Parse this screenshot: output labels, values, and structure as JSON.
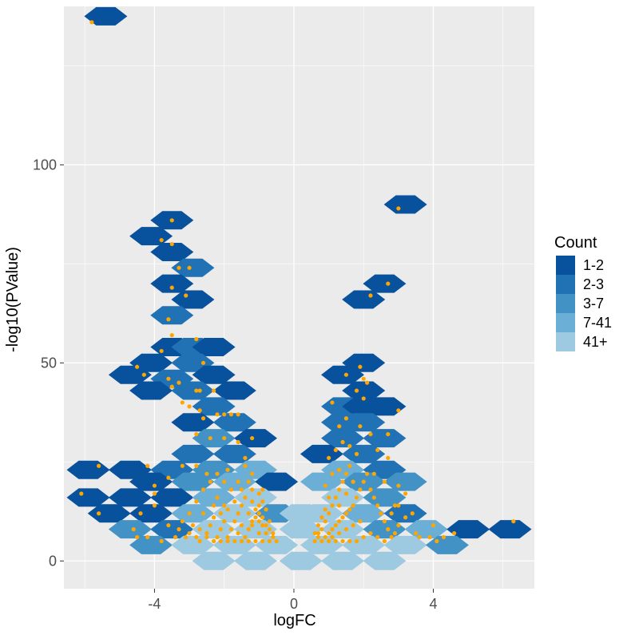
{
  "chart_data": {
    "type": "hexbin-scatter",
    "xlabel": "logFC",
    "ylabel": "-log10(PValue)",
    "xlim": [
      -6.6,
      6.9
    ],
    "ylim": [
      -7,
      140
    ],
    "x_ticks": [
      -4,
      0,
      4
    ],
    "y_ticks": [
      0,
      50,
      100
    ],
    "grid": true,
    "legend": {
      "title": "Count",
      "position": "right",
      "entries": [
        {
          "label": "1-2",
          "color": "#08519c"
        },
        {
          "label": "2-3",
          "color": "#2171b5"
        },
        {
          "label": "3-7",
          "color": "#4292c6"
        },
        {
          "label": "7-41",
          "color": "#6baed6"
        },
        {
          "label": "41+",
          "color": "#9ecae1"
        }
      ]
    },
    "hex_bins": [
      {
        "x": -5.4,
        "y": 137.5,
        "bin": 0
      },
      {
        "x": 3.2,
        "y": 90,
        "bin": 0
      },
      {
        "x": -3.5,
        "y": 86,
        "bin": 0
      },
      {
        "x": -4.1,
        "y": 82,
        "bin": 0
      },
      {
        "x": -3.5,
        "y": 78,
        "bin": 0
      },
      {
        "x": -2.9,
        "y": 74,
        "bin": 1
      },
      {
        "x": -3.5,
        "y": 70,
        "bin": 0
      },
      {
        "x": 2.6,
        "y": 70,
        "bin": 0
      },
      {
        "x": -2.9,
        "y": 66,
        "bin": 0
      },
      {
        "x": 2.0,
        "y": 66,
        "bin": 0
      },
      {
        "x": -3.5,
        "y": 62,
        "bin": 1
      },
      {
        "x": -3.5,
        "y": 54,
        "bin": 0
      },
      {
        "x": -2.9,
        "y": 54,
        "bin": 1
      },
      {
        "x": -2.3,
        "y": 54,
        "bin": 0
      },
      {
        "x": 2.0,
        "y": 50,
        "bin": 0
      },
      {
        "x": -4.7,
        "y": 47,
        "bin": 0
      },
      {
        "x": -4.1,
        "y": 50,
        "bin": 0
      },
      {
        "x": -3.5,
        "y": 46,
        "bin": 1
      },
      {
        "x": -2.9,
        "y": 50,
        "bin": 1
      },
      {
        "x": -2.3,
        "y": 47,
        "bin": 0
      },
      {
        "x": 1.4,
        "y": 47,
        "bin": 0
      },
      {
        "x": 2.0,
        "y": 43,
        "bin": 0
      },
      {
        "x": -4.1,
        "y": 43,
        "bin": 0
      },
      {
        "x": -2.9,
        "y": 43,
        "bin": 1
      },
      {
        "x": -1.7,
        "y": 43,
        "bin": 0
      },
      {
        "x": 1.4,
        "y": 39,
        "bin": 1
      },
      {
        "x": 2.0,
        "y": 39,
        "bin": 0
      },
      {
        "x": 2.6,
        "y": 39,
        "bin": 0
      },
      {
        "x": -2.3,
        "y": 39,
        "bin": 1
      },
      {
        "x": -2.9,
        "y": 35,
        "bin": 0
      },
      {
        "x": -1.7,
        "y": 35,
        "bin": 1
      },
      {
        "x": 1.4,
        "y": 35,
        "bin": 1
      },
      {
        "x": 2.0,
        "y": 35,
        "bin": 1
      },
      {
        "x": -2.3,
        "y": 31,
        "bin": 2
      },
      {
        "x": -1.1,
        "y": 31,
        "bin": 0
      },
      {
        "x": 1.4,
        "y": 31,
        "bin": 1
      },
      {
        "x": 2.6,
        "y": 31,
        "bin": 1
      },
      {
        "x": -2.9,
        "y": 27,
        "bin": 1
      },
      {
        "x": -1.7,
        "y": 27,
        "bin": 1
      },
      {
        "x": 0.8,
        "y": 27,
        "bin": 0
      },
      {
        "x": 2.0,
        "y": 27,
        "bin": 1
      },
      {
        "x": -5.9,
        "y": 23,
        "bin": 0
      },
      {
        "x": -4.7,
        "y": 23,
        "bin": 0
      },
      {
        "x": -3.5,
        "y": 23,
        "bin": 1
      },
      {
        "x": -2.3,
        "y": 23,
        "bin": 2
      },
      {
        "x": -1.1,
        "y": 23,
        "bin": 3
      },
      {
        "x": 1.4,
        "y": 23,
        "bin": 3
      },
      {
        "x": 2.6,
        "y": 23,
        "bin": 1
      },
      {
        "x": -4.1,
        "y": 20,
        "bin": 0
      },
      {
        "x": -2.9,
        "y": 20,
        "bin": 2
      },
      {
        "x": -1.7,
        "y": 20,
        "bin": 3
      },
      {
        "x": -0.5,
        "y": 20,
        "bin": 0
      },
      {
        "x": 0.8,
        "y": 20,
        "bin": 3
      },
      {
        "x": 2.0,
        "y": 20,
        "bin": 2
      },
      {
        "x": 3.2,
        "y": 20,
        "bin": 2
      },
      {
        "x": -5.9,
        "y": 16,
        "bin": 0
      },
      {
        "x": -4.7,
        "y": 16,
        "bin": 0
      },
      {
        "x": -3.5,
        "y": 16,
        "bin": 0
      },
      {
        "x": -2.3,
        "y": 16,
        "bin": 3
      },
      {
        "x": -1.1,
        "y": 16,
        "bin": 4
      },
      {
        "x": 1.4,
        "y": 16,
        "bin": 4
      },
      {
        "x": 2.6,
        "y": 16,
        "bin": 2
      },
      {
        "x": -5.3,
        "y": 12,
        "bin": 0
      },
      {
        "x": -4.1,
        "y": 12,
        "bin": 0
      },
      {
        "x": -2.9,
        "y": 12,
        "bin": 3
      },
      {
        "x": -1.7,
        "y": 12,
        "bin": 4
      },
      {
        "x": -0.5,
        "y": 12,
        "bin": 2
      },
      {
        "x": 0.2,
        "y": 12,
        "bin": 4
      },
      {
        "x": 0.8,
        "y": 12,
        "bin": 4
      },
      {
        "x": 2.0,
        "y": 12,
        "bin": 3
      },
      {
        "x": 3.2,
        "y": 12,
        "bin": 1
      },
      {
        "x": -4.7,
        "y": 8,
        "bin": 2
      },
      {
        "x": -3.5,
        "y": 8,
        "bin": 1
      },
      {
        "x": -2.3,
        "y": 8,
        "bin": 4
      },
      {
        "x": -1.1,
        "y": 8,
        "bin": 4
      },
      {
        "x": 0.2,
        "y": 8,
        "bin": 4
      },
      {
        "x": 1.4,
        "y": 8,
        "bin": 4
      },
      {
        "x": 2.6,
        "y": 8,
        "bin": 2
      },
      {
        "x": 3.8,
        "y": 8,
        "bin": 3
      },
      {
        "x": 5.0,
        "y": 8,
        "bin": 0
      },
      {
        "x": 6.2,
        "y": 8,
        "bin": 0
      },
      {
        "x": -4.1,
        "y": 4,
        "bin": 2
      },
      {
        "x": -2.9,
        "y": 4,
        "bin": 4
      },
      {
        "x": -1.7,
        "y": 4,
        "bin": 4
      },
      {
        "x": -0.5,
        "y": 4,
        "bin": 4
      },
      {
        "x": 0.8,
        "y": 4,
        "bin": 4
      },
      {
        "x": 2.0,
        "y": 4,
        "bin": 4
      },
      {
        "x": 3.2,
        "y": 4,
        "bin": 4
      },
      {
        "x": 4.4,
        "y": 4,
        "bin": 2
      },
      {
        "x": -2.3,
        "y": 0,
        "bin": 4
      },
      {
        "x": -1.1,
        "y": 0,
        "bin": 4
      },
      {
        "x": 0.2,
        "y": 0,
        "bin": 4
      },
      {
        "x": 1.4,
        "y": 0,
        "bin": 4
      },
      {
        "x": 2.6,
        "y": 0,
        "bin": 4
      }
    ],
    "points_color": "#ffa500",
    "points": [
      [
        -5.8,
        136
      ],
      [
        3.0,
        89
      ],
      [
        -3.5,
        86
      ],
      [
        -3.8,
        81
      ],
      [
        -3.5,
        80
      ],
      [
        -3.3,
        74
      ],
      [
        -3.0,
        74
      ],
      [
        -3.5,
        69
      ],
      [
        -3.1,
        67
      ],
      [
        2.7,
        70
      ],
      [
        2.2,
        67
      ],
      [
        -3.6,
        61
      ],
      [
        -3.5,
        57
      ],
      [
        -2.8,
        56
      ],
      [
        -2.6,
        50
      ],
      [
        -3.8,
        53
      ],
      [
        -4.5,
        49
      ],
      [
        -4.3,
        47
      ],
      [
        -3.6,
        46
      ],
      [
        -3.5,
        44
      ],
      [
        -3.3,
        45
      ],
      [
        -3.2,
        40
      ],
      [
        -2.8,
        43
      ],
      [
        -2.7,
        43
      ],
      [
        -2.3,
        43
      ],
      [
        1.9,
        49
      ],
      [
        2.0,
        46
      ],
      [
        2.1,
        45
      ],
      [
        2.0,
        41
      ],
      [
        1.8,
        43
      ],
      [
        1.5,
        47
      ],
      [
        1.1,
        40
      ],
      [
        1.5,
        36
      ],
      [
        1.3,
        34
      ],
      [
        1.9,
        34
      ],
      [
        2.2,
        32
      ],
      [
        2.7,
        32
      ],
      [
        3.0,
        38
      ],
      [
        -3.0,
        39
      ],
      [
        -2.7,
        38
      ],
      [
        -2.6,
        36
      ],
      [
        -2.2,
        37
      ],
      [
        -2.0,
        37
      ],
      [
        -1.8,
        37
      ],
      [
        -1.6,
        37
      ],
      [
        -1.2,
        31
      ],
      [
        -2.8,
        32
      ],
      [
        -2.4,
        31
      ],
      [
        -2.0,
        31
      ],
      [
        -1.6,
        30
      ],
      [
        -1.4,
        26
      ],
      [
        1.0,
        26
      ],
      [
        1.2,
        28
      ],
      [
        1.4,
        30
      ],
      [
        1.6,
        29
      ],
      [
        1.8,
        27
      ],
      [
        2.4,
        28
      ],
      [
        2.7,
        26
      ],
      [
        -5.6,
        24
      ],
      [
        -4.2,
        24
      ],
      [
        -3.2,
        24
      ],
      [
        -2.8,
        24
      ],
      [
        -2.5,
        22
      ],
      [
        -2.2,
        22
      ],
      [
        -1.9,
        23
      ],
      [
        -1.4,
        24
      ],
      [
        -1.2,
        22
      ],
      [
        -3.6,
        21
      ],
      [
        -4.0,
        17
      ],
      [
        -4.0,
        19
      ],
      [
        -6.1,
        17
      ],
      [
        -5.6,
        12
      ],
      [
        -4.4,
        12
      ],
      [
        -4.0,
        14
      ],
      [
        -4.5,
        6
      ],
      [
        -4.2,
        6
      ],
      [
        -3.8,
        5
      ],
      [
        -4.6,
        8
      ],
      [
        -3.6,
        9
      ],
      [
        -3.2,
        10
      ],
      [
        -3.0,
        12
      ],
      [
        -2.8,
        15
      ],
      [
        -2.6,
        18
      ],
      [
        -2.4,
        20
      ],
      [
        -2.2,
        16
      ],
      [
        -2.0,
        14
      ],
      [
        -1.8,
        18
      ],
      [
        -1.6,
        12
      ],
      [
        -1.4,
        16
      ],
      [
        -1.2,
        18
      ],
      [
        -1.0,
        17
      ],
      [
        -0.9,
        15
      ],
      [
        -0.8,
        13
      ],
      [
        -0.7,
        10
      ],
      [
        -0.6,
        7
      ],
      [
        -0.5,
        5
      ],
      [
        -0.6,
        6
      ],
      [
        -0.7,
        8
      ],
      [
        -0.8,
        9
      ],
      [
        -0.9,
        11
      ],
      [
        -1.0,
        12
      ],
      [
        -1.1,
        13
      ],
      [
        -1.2,
        10
      ],
      [
        -1.3,
        8
      ],
      [
        -1.4,
        6
      ],
      [
        -1.5,
        9
      ],
      [
        -1.6,
        7
      ],
      [
        -1.7,
        10
      ],
      [
        -1.8,
        8
      ],
      [
        -1.9,
        6
      ],
      [
        -2.0,
        10
      ],
      [
        -2.1,
        8
      ],
      [
        -2.2,
        6
      ],
      [
        -2.3,
        11
      ],
      [
        -2.4,
        9
      ],
      [
        -2.5,
        7
      ],
      [
        -2.6,
        12
      ],
      [
        -2.7,
        8
      ],
      [
        -2.8,
        6
      ],
      [
        -2.9,
        9
      ],
      [
        -3.0,
        7
      ],
      [
        -3.1,
        6
      ],
      [
        -3.3,
        8
      ],
      [
        -3.4,
        6
      ],
      [
        -1.1,
        5
      ],
      [
        -0.9,
        5
      ],
      [
        -0.7,
        5
      ],
      [
        -1.3,
        5
      ],
      [
        -1.5,
        5
      ],
      [
        -1.7,
        5
      ],
      [
        -1.9,
        5
      ],
      [
        -2.1,
        5
      ],
      [
        -2.3,
        5
      ],
      [
        -2.5,
        6
      ],
      [
        -2.7,
        5
      ],
      [
        -1.0,
        7
      ],
      [
        -0.8,
        7
      ],
      [
        -1.2,
        9
      ],
      [
        -1.0,
        10
      ],
      [
        -0.9,
        9
      ],
      [
        -1.1,
        11
      ],
      [
        -1.3,
        12
      ],
      [
        -1.5,
        14
      ],
      [
        -1.2,
        15
      ],
      [
        -1.0,
        14
      ],
      [
        -0.9,
        18
      ],
      [
        -1.5,
        18
      ],
      [
        -1.7,
        15
      ],
      [
        -1.9,
        13
      ],
      [
        -2.1,
        12
      ],
      [
        -2.3,
        14
      ],
      [
        -1.6,
        20
      ],
      [
        -1.3,
        20
      ],
      [
        -2.0,
        20
      ],
      [
        0.6,
        5
      ],
      [
        0.7,
        6
      ],
      [
        0.8,
        8
      ],
      [
        0.9,
        10
      ],
      [
        1.0,
        12
      ],
      [
        1.1,
        14
      ],
      [
        1.2,
        16
      ],
      [
        1.3,
        18
      ],
      [
        1.4,
        20
      ],
      [
        1.5,
        22
      ],
      [
        1.6,
        24
      ],
      [
        1.1,
        22
      ],
      [
        1.3,
        23
      ],
      [
        0.9,
        19
      ],
      [
        0.7,
        7
      ],
      [
        0.8,
        5
      ],
      [
        0.9,
        6
      ],
      [
        1.0,
        7
      ],
      [
        1.1,
        8
      ],
      [
        1.2,
        9
      ],
      [
        1.3,
        10
      ],
      [
        1.4,
        11
      ],
      [
        1.5,
        12
      ],
      [
        1.6,
        13
      ],
      [
        1.7,
        14
      ],
      [
        1.8,
        16
      ],
      [
        1.9,
        18
      ],
      [
        2.0,
        20
      ],
      [
        2.1,
        22
      ],
      [
        2.2,
        18
      ],
      [
        2.3,
        16
      ],
      [
        2.4,
        14
      ],
      [
        2.5,
        12
      ],
      [
        2.6,
        10
      ],
      [
        2.7,
        8
      ],
      [
        2.8,
        6
      ],
      [
        2.9,
        14
      ],
      [
        3.0,
        19
      ],
      [
        3.2,
        17
      ],
      [
        2.6,
        20
      ],
      [
        2.3,
        22
      ],
      [
        1.7,
        20
      ],
      [
        1.5,
        17
      ],
      [
        1.3,
        14
      ],
      [
        1.0,
        16
      ],
      [
        0.9,
        13
      ],
      [
        0.8,
        11
      ],
      [
        0.7,
        9
      ],
      [
        0.6,
        7
      ],
      [
        1.0,
        5
      ],
      [
        1.2,
        5
      ],
      [
        1.4,
        5
      ],
      [
        1.6,
        5
      ],
      [
        1.8,
        5
      ],
      [
        2.0,
        6
      ],
      [
        2.2,
        7
      ],
      [
        2.4,
        6
      ],
      [
        2.6,
        5
      ],
      [
        3.0,
        9
      ],
      [
        3.2,
        11
      ],
      [
        3.4,
        12
      ],
      [
        3.0,
        14
      ],
      [
        2.8,
        12
      ],
      [
        3.6,
        6
      ],
      [
        3.9,
        6
      ],
      [
        4.0,
        9
      ],
      [
        4.1,
        5
      ],
      [
        4.3,
        6
      ],
      [
        4.6,
        7
      ],
      [
        6.3,
        10
      ],
      [
        3.5,
        7
      ],
      [
        2.9,
        7
      ],
      [
        1.1,
        6
      ],
      [
        1.3,
        7
      ],
      [
        1.5,
        8
      ],
      [
        1.7,
        9
      ],
      [
        1.9,
        10
      ]
    ]
  }
}
